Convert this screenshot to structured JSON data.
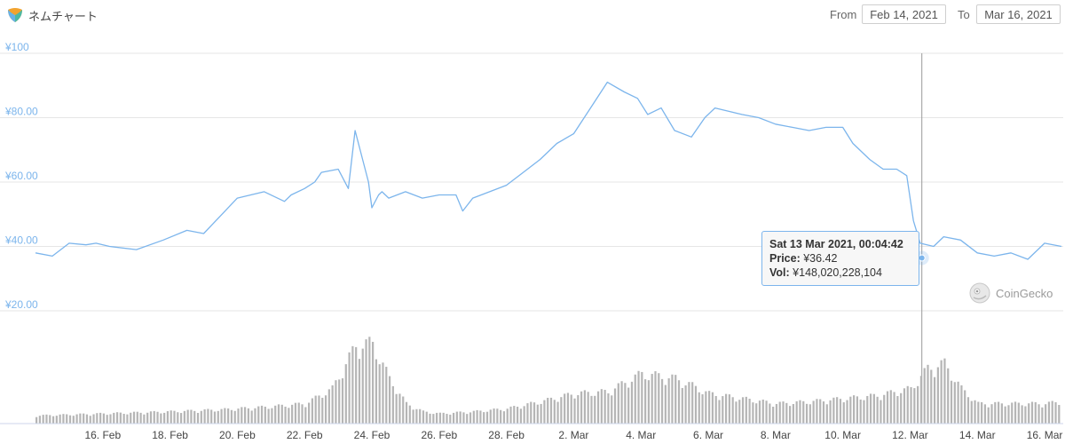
{
  "header": {
    "title": "ネムチャート",
    "from_label": "From",
    "from_value": "Feb 14, 2021",
    "to_label": "To",
    "to_value": "Mar 16, 2021"
  },
  "colors": {
    "line": "#7cb5ec",
    "axis_text": "#7cb5ec",
    "volume": "#b5b5b5",
    "grid": "#e6e6e6",
    "crosshair": "#999999"
  },
  "tooltip": {
    "date": "Sat 13 Mar 2021, 00:04:42",
    "price_label": "Price:",
    "price_value": "¥36.42",
    "vol_label": "Vol:",
    "vol_value": "¥148,020,228,104"
  },
  "watermark": "CoinGecko",
  "chart_data": {
    "type": "line",
    "title": "ネムチャート",
    "ylim": [
      20,
      100
    ],
    "y_ticks": [
      "¥20.00",
      "¥40.00",
      "¥60.00",
      "¥80.00",
      "¥100"
    ],
    "y_tick_values": [
      20,
      40,
      60,
      80,
      100
    ],
    "x_ticks": [
      "16. Feb",
      "18. Feb",
      "20. Feb",
      "22. Feb",
      "24. Feb",
      "26. Feb",
      "28. Feb",
      "2. Mar",
      "4. Mar",
      "6. Mar",
      "8. Mar",
      "10. Mar",
      "12. Mar",
      "14. Mar",
      "16. Mar"
    ],
    "x_tick_days": [
      2,
      4,
      6,
      8,
      10,
      12,
      14,
      16,
      18,
      20,
      22,
      24,
      26,
      28,
      30
    ],
    "xlim_days": [
      0,
      30.5
    ],
    "grid": true,
    "series": [
      {
        "x_days": [
          0,
          0.5,
          1,
          1.5,
          1.8,
          2.2,
          3,
          3.8,
          4.5,
          5,
          6,
          6.8,
          7.4,
          7.6,
          8,
          8.3,
          8.5,
          9,
          9.3,
          9.5,
          9.9,
          10,
          10.2,
          10.3,
          10.5,
          11,
          11.5,
          12,
          12.5,
          12.7,
          13,
          13.5,
          14,
          14.5,
          15,
          15.5,
          16,
          16.5,
          17,
          17.5,
          17.9,
          18.2,
          18.6,
          19,
          19.5,
          19.9,
          20.2,
          20.6,
          21,
          21.5,
          22,
          22.5,
          23,
          23.5,
          24,
          24.3,
          24.8,
          25.2,
          25.6,
          25.9,
          26.1,
          26.3,
          26.7,
          27,
          27.5,
          28,
          28.5,
          29,
          29.5,
          30,
          30.5
        ],
        "prices": [
          38,
          37,
          41,
          40.5,
          41,
          40,
          39,
          42,
          45,
          44,
          55,
          57,
          54,
          56,
          58,
          60,
          63,
          64,
          58,
          76,
          60,
          52,
          56,
          57,
          55,
          57,
          55,
          56,
          56,
          51,
          55,
          57,
          59,
          63,
          67,
          72,
          75,
          83,
          91,
          88,
          86,
          81,
          83,
          76,
          74,
          80,
          83,
          82,
          81,
          80,
          78,
          77,
          76,
          77,
          77,
          72,
          67,
          64,
          64,
          62,
          48,
          41,
          40,
          43,
          42,
          38,
          37,
          38,
          36,
          41,
          40
        ]
      }
    ],
    "volume_series": {
      "x_days": [
        0,
        2,
        4,
        5.5,
        7,
        8,
        8.8,
        9.5,
        10,
        10.5,
        11,
        11.5,
        12,
        13,
        14,
        15,
        16,
        17,
        18,
        19,
        19.5,
        20,
        21,
        22,
        23,
        24,
        25,
        26,
        26.5,
        27,
        27.5,
        28,
        29,
        30,
        30.5
      ],
      "relative": [
        0.08,
        0.1,
        0.12,
        0.14,
        0.17,
        0.2,
        0.35,
        0.78,
        0.8,
        0.45,
        0.2,
        0.12,
        0.1,
        0.12,
        0.15,
        0.22,
        0.3,
        0.32,
        0.5,
        0.45,
        0.38,
        0.3,
        0.25,
        0.2,
        0.22,
        0.25,
        0.28,
        0.35,
        0.55,
        0.6,
        0.35,
        0.2,
        0.2,
        0.2,
        0.22
      ]
    }
  }
}
